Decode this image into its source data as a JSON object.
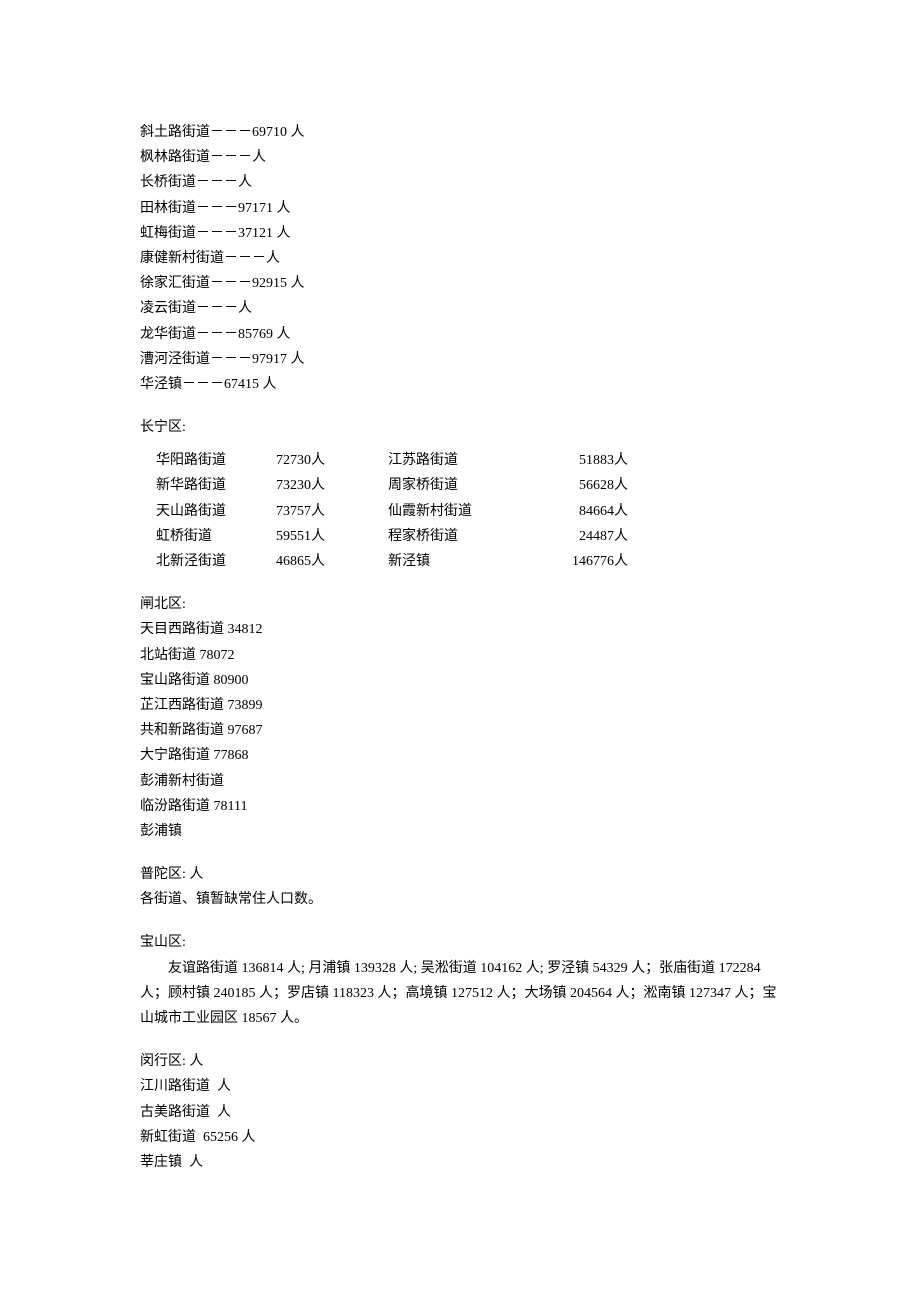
{
  "xuhui": {
    "lines": [
      "斜土路街道－－－69710 人",
      "枫林路街道－－－人",
      "长桥街道－－－人",
      "田林街道－－－97171 人",
      "虹梅街道－－－37121 人",
      "康健新村街道－－－人",
      "徐家汇街道－－－92915 人",
      "凌云街道－－－人",
      "龙华街道－－－85769 人",
      "漕河泾街道－－－97917 人",
      "华泾镇－－－67415 人"
    ]
  },
  "changning": {
    "header": "长宁区:",
    "rows": [
      {
        "c1": "华阳路街道",
        "c2": "72730人",
        "c3": "江苏路街道",
        "c4": "51883人"
      },
      {
        "c1": "新华路街道",
        "c2": "73230人",
        "c3": "周家桥街道",
        "c4": "56628人"
      },
      {
        "c1": "天山路街道",
        "c2": "73757人",
        "c3": "仙霞新村街道",
        "c4": "84664人"
      },
      {
        "c1": "虹桥街道",
        "c2": "59551人",
        "c3": "程家桥街道",
        "c4": "24487人"
      },
      {
        "c1": "北新泾街道",
        "c2": "46865人",
        "c3": "新泾镇",
        "c4": "146776人"
      }
    ]
  },
  "zhabei": {
    "header": "闸北区:",
    "lines": [
      "天目西路街道 34812",
      "北站街道 78072",
      "宝山路街道 80900",
      "芷江西路街道 73899",
      "共和新路街道 97687",
      "大宁路街道 77868",
      "彭浦新村街道",
      "临汾路街道 78111",
      "彭浦镇"
    ]
  },
  "putuo": {
    "header": "普陀区:  人",
    "line": "各街道、镇暂缺常住人口数。"
  },
  "baoshan": {
    "header": "宝山区:",
    "para": "友谊路街道 136814 人; 月浦镇 139328 人; 吴淞街道 104162 人; 罗泾镇 54329 人；张庙街道 172284 人；顾村镇 240185 人；罗店镇 118323 人；高境镇 127512 人；大场镇 204564 人；淞南镇 127347 人；宝山城市工业园区 18567 人。"
  },
  "minhang": {
    "header": "闵行区:  人",
    "lines": [
      "江川路街道  人",
      "古美路街道  人",
      "新虹街道  65256 人",
      "莘庄镇  人"
    ]
  }
}
